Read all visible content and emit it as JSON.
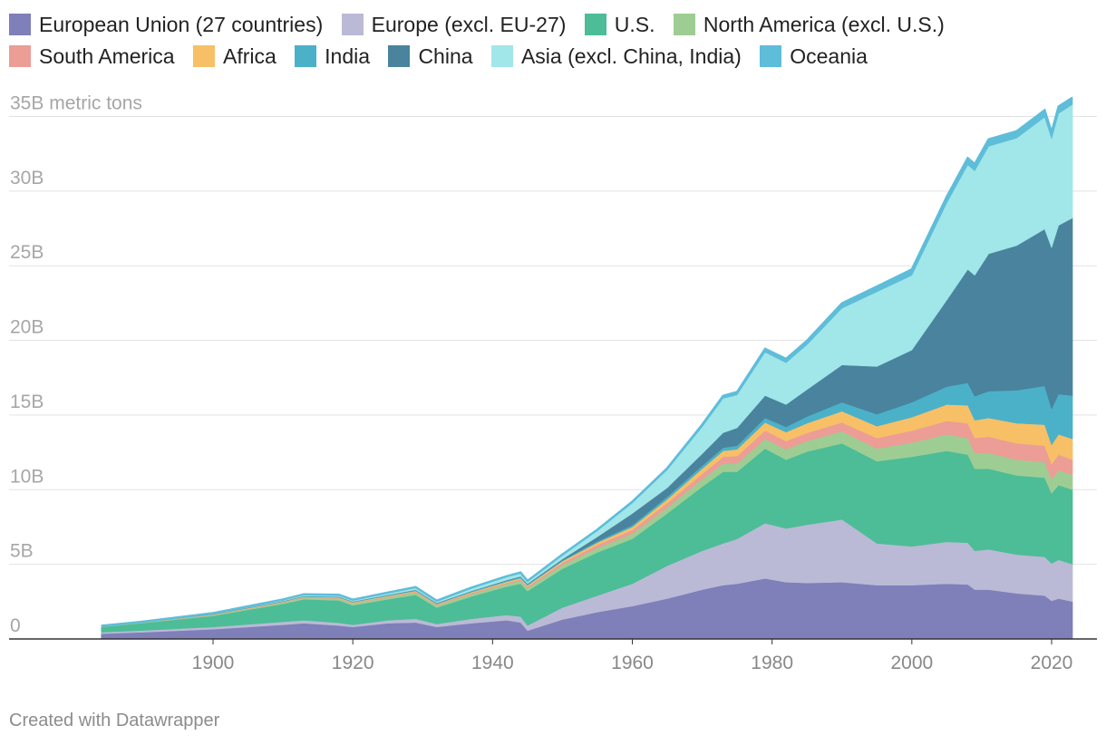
{
  "chart_data": {
    "type": "area",
    "stacked": true,
    "ylabel": "metric tons",
    "ylim": [
      0,
      36000000000
    ],
    "xlim": [
      1884,
      2023
    ],
    "y_ticks": [
      {
        "value": 0,
        "label": "0"
      },
      {
        "value": 5000000000,
        "label": "5B"
      },
      {
        "value": 10000000000,
        "label": "10B"
      },
      {
        "value": 15000000000,
        "label": "15B"
      },
      {
        "value": 20000000000,
        "label": "20B"
      },
      {
        "value": 25000000000,
        "label": "25B"
      },
      {
        "value": 30000000000,
        "label": "30B"
      },
      {
        "value": 35000000000,
        "label": "35B metric tons"
      }
    ],
    "x_ticks": [
      1900,
      1920,
      1940,
      1960,
      1980,
      2000,
      2020
    ],
    "grid": true,
    "legend_position": "top",
    "x": [
      1884,
      1890,
      1900,
      1910,
      1913,
      1918,
      1920,
      1925,
      1929,
      1932,
      1937,
      1942,
      1944,
      1945,
      1950,
      1955,
      1960,
      1965,
      1970,
      1973,
      1975,
      1979,
      1982,
      1985,
      1990,
      1995,
      2000,
      2005,
      2008,
      2009,
      2011,
      2015,
      2019,
      2020,
      2021,
      2023
    ],
    "series": [
      {
        "name": "European Union (27 countries)",
        "color": "#7f7fba",
        "values": [
          0.35,
          0.45,
          0.65,
          0.95,
          1.05,
          0.9,
          0.8,
          1.05,
          1.1,
          0.8,
          1.05,
          1.25,
          1.1,
          0.55,
          1.3,
          1.8,
          2.2,
          2.7,
          3.3,
          3.6,
          3.7,
          4.05,
          3.8,
          3.75,
          3.8,
          3.6,
          3.6,
          3.7,
          3.65,
          3.3,
          3.3,
          3.05,
          2.9,
          2.55,
          2.7,
          2.5
        ]
      },
      {
        "name": "Europe (excl. EU-27)",
        "color": "#babad6",
        "values": [
          0.1,
          0.12,
          0.15,
          0.2,
          0.2,
          0.18,
          0.15,
          0.2,
          0.25,
          0.2,
          0.3,
          0.35,
          0.4,
          0.35,
          0.8,
          1.1,
          1.5,
          2.2,
          2.6,
          2.8,
          3.0,
          3.7,
          3.6,
          3.9,
          4.2,
          2.8,
          2.6,
          2.8,
          2.8,
          2.6,
          2.7,
          2.6,
          2.6,
          2.5,
          2.6,
          2.5
        ]
      },
      {
        "name": "U.S.",
        "color": "#4cbd96",
        "values": [
          0.35,
          0.5,
          0.75,
          1.2,
          1.4,
          1.5,
          1.3,
          1.4,
          1.6,
          1.1,
          1.5,
          1.9,
          2.2,
          2.3,
          2.6,
          2.9,
          3.0,
          3.5,
          4.3,
          4.8,
          4.5,
          5.0,
          4.6,
          4.9,
          5.1,
          5.5,
          6.0,
          6.1,
          5.9,
          5.5,
          5.4,
          5.3,
          5.3,
          4.7,
          5.0,
          5.0
        ]
      },
      {
        "name": "North America (excl. U.S.)",
        "color": "#9ecd94",
        "values": [
          0.02,
          0.03,
          0.05,
          0.08,
          0.1,
          0.12,
          0.12,
          0.13,
          0.15,
          0.12,
          0.15,
          0.18,
          0.2,
          0.2,
          0.25,
          0.3,
          0.35,
          0.4,
          0.5,
          0.55,
          0.55,
          0.65,
          0.7,
          0.7,
          0.8,
          0.85,
          0.95,
          1.1,
          1.1,
          1.05,
          1.05,
          1.05,
          1.05,
          0.95,
          1.0,
          1.0
        ]
      },
      {
        "name": "South America",
        "color": "#eb9d96",
        "values": [
          0.01,
          0.01,
          0.02,
          0.03,
          0.04,
          0.04,
          0.04,
          0.05,
          0.06,
          0.06,
          0.07,
          0.08,
          0.09,
          0.1,
          0.15,
          0.2,
          0.25,
          0.3,
          0.35,
          0.45,
          0.5,
          0.55,
          0.55,
          0.55,
          0.6,
          0.7,
          0.8,
          0.9,
          1.0,
          1.0,
          1.1,
          1.1,
          1.1,
          1.0,
          1.05,
          1.0
        ]
      },
      {
        "name": "Africa",
        "color": "#f7c066",
        "values": [
          0.01,
          0.01,
          0.02,
          0.03,
          0.03,
          0.04,
          0.04,
          0.05,
          0.05,
          0.05,
          0.06,
          0.07,
          0.08,
          0.08,
          0.1,
          0.15,
          0.2,
          0.25,
          0.35,
          0.4,
          0.45,
          0.55,
          0.6,
          0.65,
          0.75,
          0.8,
          0.9,
          1.1,
          1.2,
          1.2,
          1.25,
          1.35,
          1.4,
          1.3,
          1.35,
          1.4
        ]
      },
      {
        "name": "India",
        "color": "#4bb1c9",
        "values": [
          0.01,
          0.01,
          0.02,
          0.03,
          0.03,
          0.04,
          0.04,
          0.05,
          0.05,
          0.05,
          0.06,
          0.07,
          0.07,
          0.07,
          0.07,
          0.09,
          0.12,
          0.17,
          0.2,
          0.21,
          0.24,
          0.3,
          0.35,
          0.45,
          0.6,
          0.8,
          1.0,
          1.2,
          1.5,
          1.6,
          1.8,
          2.2,
          2.6,
          2.4,
          2.7,
          2.9
        ]
      },
      {
        "name": "China",
        "color": "#4a839d",
        "values": [
          0.0,
          0.0,
          0.01,
          0.02,
          0.02,
          0.02,
          0.02,
          0.02,
          0.03,
          0.03,
          0.03,
          0.04,
          0.05,
          0.05,
          0.08,
          0.3,
          0.78,
          0.6,
          0.8,
          1.0,
          1.2,
          1.5,
          1.5,
          1.8,
          2.5,
          3.2,
          3.5,
          5.8,
          7.6,
          8.1,
          9.2,
          9.7,
          10.5,
          10.8,
          11.3,
          11.9
        ]
      },
      {
        "name": "Asia (excl. China, India)",
        "color": "#a1e6e8",
        "values": [
          0.02,
          0.02,
          0.05,
          0.08,
          0.1,
          0.1,
          0.1,
          0.12,
          0.15,
          0.12,
          0.18,
          0.22,
          0.22,
          0.15,
          0.25,
          0.4,
          0.7,
          1.2,
          1.8,
          2.3,
          2.2,
          2.9,
          2.8,
          3.0,
          3.8,
          5.0,
          5.0,
          6.5,
          7.0,
          7.0,
          7.2,
          7.2,
          7.5,
          7.3,
          7.5,
          7.6
        ]
      },
      {
        "name": "Oceania",
        "color": "#5ebdd9",
        "values": [
          0.01,
          0.01,
          0.01,
          0.02,
          0.02,
          0.02,
          0.02,
          0.03,
          0.03,
          0.03,
          0.04,
          0.04,
          0.04,
          0.04,
          0.06,
          0.08,
          0.1,
          0.12,
          0.16,
          0.18,
          0.2,
          0.24,
          0.26,
          0.28,
          0.33,
          0.36,
          0.4,
          0.43,
          0.46,
          0.46,
          0.47,
          0.46,
          0.47,
          0.45,
          0.46,
          0.46
        ]
      }
    ],
    "units_scale": 1000000000
  },
  "legend": {
    "items": [
      {
        "label": "European Union (27 countries)",
        "color": "#7f7fba"
      },
      {
        "label": "Europe (excl. EU-27)",
        "color": "#babad6"
      },
      {
        "label": "U.S.",
        "color": "#4cbd96"
      },
      {
        "label": "North America (excl. U.S.)",
        "color": "#9ecd94"
      },
      {
        "label": "South America",
        "color": "#eb9d96"
      },
      {
        "label": "Africa",
        "color": "#f7c066"
      },
      {
        "label": "India",
        "color": "#4bb1c9"
      },
      {
        "label": "China",
        "color": "#4a839d"
      },
      {
        "label": "Asia (excl. China, India)",
        "color": "#a1e6e8"
      },
      {
        "label": "Oceania",
        "color": "#5ebdd9"
      }
    ]
  },
  "footer": {
    "credit": "Created with Datawrapper"
  }
}
